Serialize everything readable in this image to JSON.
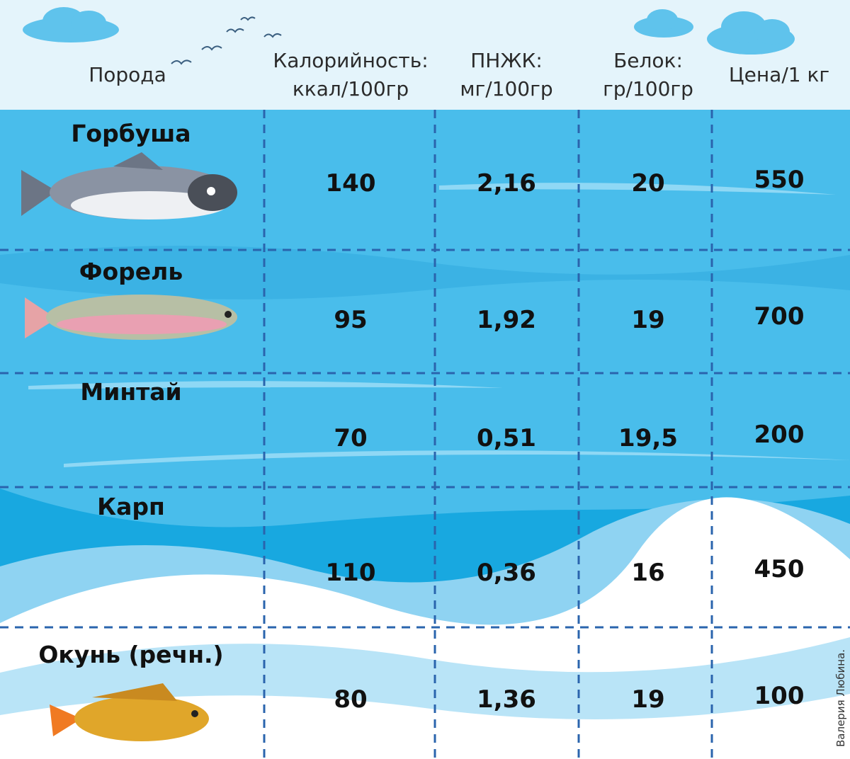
{
  "header": {
    "columns": [
      [
        "Порода"
      ],
      [
        "Калорийность:",
        "ккал/100гр"
      ],
      [
        "ПНЖК:",
        "мг/100гр"
      ],
      [
        "Белок:",
        "гр/100гр"
      ],
      [
        "Цена/1 кг"
      ]
    ]
  },
  "rows": [
    {
      "name": "Горбуша",
      "values": [
        "140",
        "2,16",
        "20",
        "550"
      ]
    },
    {
      "name": "Форель",
      "values": [
        "95",
        "1,92",
        "19",
        "700"
      ]
    },
    {
      "name": "Минтай",
      "values": [
        "70",
        "0,51",
        "19,5",
        "200"
      ]
    },
    {
      "name": "Карп",
      "values": [
        "110",
        "0,36",
        "16",
        "450"
      ]
    },
    {
      "name": "Окунь (речн.)",
      "values": [
        "80",
        "1,36",
        "19",
        "100"
      ]
    }
  ],
  "credit": "Валерия Любина."
}
